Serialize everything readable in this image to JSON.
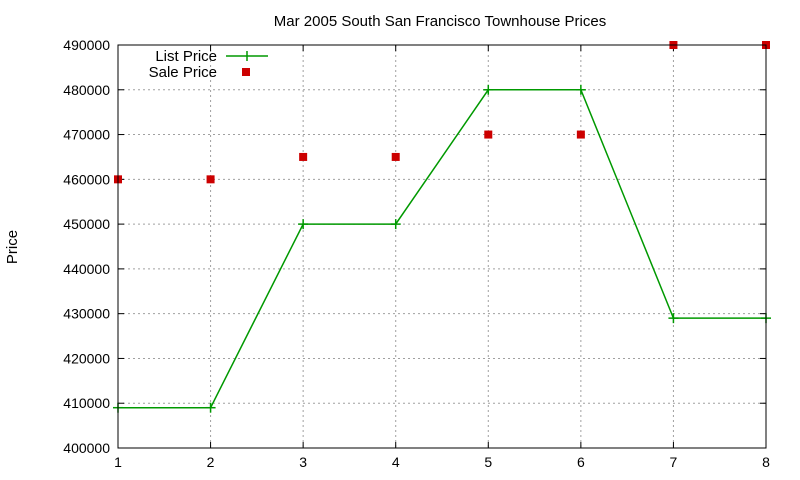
{
  "chart_data": {
    "type": "line",
    "title": "Mar 2005 South San Francisco Townhouse Prices",
    "xlabel": "",
    "ylabel": "Price",
    "xlim": [
      1,
      8
    ],
    "ylim": [
      400000,
      490000
    ],
    "x_ticks": [
      1,
      2,
      3,
      4,
      5,
      6,
      7,
      8
    ],
    "y_ticks": [
      400000,
      410000,
      420000,
      430000,
      440000,
      450000,
      460000,
      470000,
      480000,
      490000
    ],
    "grid": true,
    "legend_position": "top-left",
    "series": [
      {
        "name": "List Price",
        "style": "linespoints",
        "marker": "plus",
        "color": "#009900",
        "x": [
          1,
          2,
          3,
          4,
          5,
          6,
          7,
          8
        ],
        "y": [
          409000,
          409000,
          450000,
          450000,
          480000,
          480000,
          429000,
          429000
        ]
      },
      {
        "name": "Sale Price",
        "style": "points",
        "marker": "square",
        "color": "#cc0000",
        "x": [
          1,
          2,
          3,
          4,
          5,
          6,
          7,
          8
        ],
        "y": [
          460000,
          460000,
          465000,
          465000,
          470000,
          470000,
          490000,
          490000
        ]
      }
    ]
  }
}
